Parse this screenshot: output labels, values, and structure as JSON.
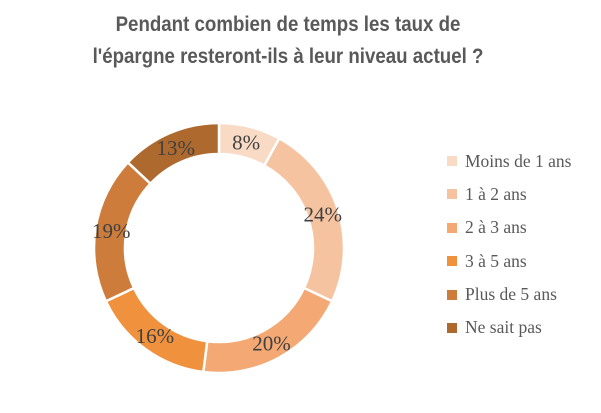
{
  "title_lines": [
    "Pendant combien de temps les taux de",
    "l'épargne resteront-ils à leur niveau actuel ?"
  ],
  "colors": {
    "title_text": "#595959",
    "legend_text": "#595959",
    "data_label_text": "#404040",
    "background": "#ffffff",
    "slice_gap": "#ffffff"
  },
  "chart_data": {
    "type": "pie",
    "subtype": "donut",
    "title": "Pendant combien de temps les taux de l'épargne resteront-ils à leur niveau actuel ?",
    "categories": [
      "Moins de 1 ans",
      "1 à 2 ans",
      "2 à 3 ans",
      "3 à 5 ans",
      "Plus de 5 ans",
      "Ne sait pas"
    ],
    "values": [
      8,
      24,
      20,
      16,
      19,
      13
    ],
    "data_labels": [
      "8%",
      "24%",
      "20%",
      "16%",
      "19%",
      "13%"
    ],
    "unit": "%",
    "colors": [
      "#F9DAC5",
      "#F6C3A1",
      "#F4A873",
      "#EF913D",
      "#CE7C3C",
      "#AE6A2E"
    ],
    "start_angle_deg": 0,
    "direction": "clockwise",
    "donut_hole_ratio": 0.75,
    "legend_position": "right",
    "data_labels_position": "inside-ring"
  }
}
